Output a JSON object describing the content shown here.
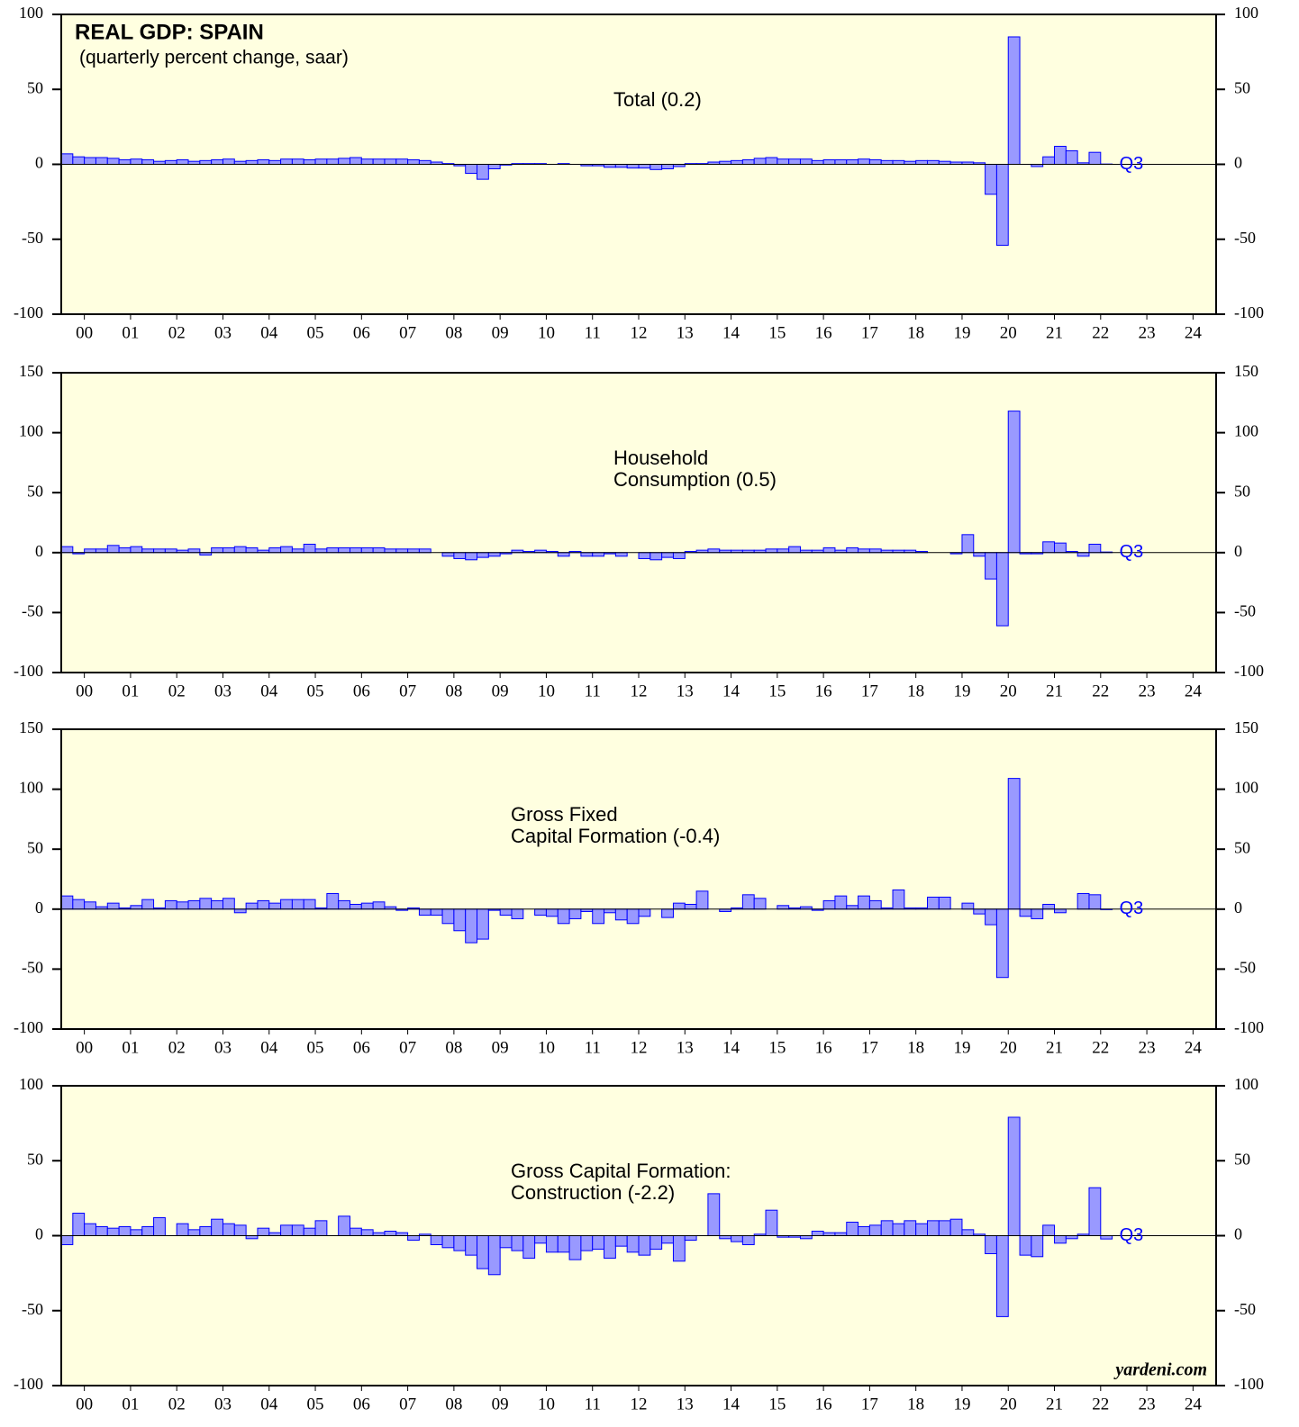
{
  "chart_data": [
    {
      "type": "bar",
      "title": "REAL GDP: SPAIN",
      "subtitle": "(quarterly percent change, saar)",
      "label": [
        "Total (0.2)"
      ],
      "end_label": "Q3",
      "color": "#9999ff",
      "x": [
        0,
        0.25,
        0.5,
        0.75,
        1,
        1.25,
        1.5,
        1.75,
        2,
        2.25,
        2.5,
        2.75,
        3,
        3.25,
        3.5,
        3.75,
        4,
        4.25,
        4.5,
        4.75,
        5,
        5.25,
        5.5,
        5.75,
        6,
        6.25,
        6.5,
        6.75,
        7,
        7.25,
        7.5,
        7.75,
        8,
        8.25,
        8.5,
        8.75,
        9,
        9.25,
        9.5,
        9.75,
        10,
        10.25,
        10.5,
        10.75,
        11,
        11.25,
        11.5,
        11.75,
        12,
        12.25,
        12.5,
        12.75,
        13,
        13.25,
        13.5,
        13.75,
        14,
        14.25,
        14.5,
        14.75,
        15,
        15.25,
        15.5,
        15.75,
        16,
        16.25,
        16.5,
        16.75,
        17,
        17.25,
        17.5,
        17.75,
        18,
        18.25,
        18.5,
        18.75,
        19,
        19.25,
        19.5,
        19.75,
        20,
        20.25,
        20.5,
        20.75,
        21,
        21.25,
        21.5,
        21.75,
        22,
        22.25,
        22.5
      ],
      "values": [
        7,
        5,
        4.5,
        4.5,
        4,
        3,
        3.5,
        3,
        2,
        2.5,
        3,
        2,
        2.5,
        3,
        3.5,
        2,
        2.5,
        3,
        2.5,
        3.5,
        3.5,
        3,
        3.5,
        3.5,
        4,
        4.5,
        3.5,
        3.5,
        3.5,
        3.5,
        3,
        2.5,
        1.5,
        0.5,
        -1,
        -6,
        -10,
        -3,
        -0.5,
        0.5,
        0.5,
        0.5,
        0,
        0.5,
        0,
        -1,
        -1,
        -2,
        -2,
        -2.5,
        -2.5,
        -3.5,
        -3,
        -1.5,
        0.5,
        0.5,
        1.5,
        2,
        2.5,
        3,
        4,
        4.5,
        3.5,
        3.5,
        3.5,
        2.5,
        3,
        3,
        3,
        3.5,
        3,
        2.5,
        2.5,
        2,
        2.5,
        2.5,
        2,
        1.5,
        1.5,
        1,
        -20,
        -54,
        85,
        0,
        -1.5,
        5,
        12,
        9,
        1,
        8,
        0.2
      ],
      "xlim": [
        0,
        25
      ],
      "xticks": [
        {
          "value": 0.5,
          "label": "00"
        },
        {
          "value": 1.5,
          "label": "01"
        },
        {
          "value": 2.5,
          "label": "02"
        },
        {
          "value": 3.5,
          "label": "03"
        },
        {
          "value": 4.5,
          "label": "04"
        },
        {
          "value": 5.5,
          "label": "05"
        },
        {
          "value": 6.5,
          "label": "06"
        },
        {
          "value": 7.5,
          "label": "07"
        },
        {
          "value": 8.5,
          "label": "08"
        },
        {
          "value": 9.5,
          "label": "09"
        },
        {
          "value": 10.5,
          "label": "10"
        },
        {
          "value": 11.5,
          "label": "11"
        },
        {
          "value": 12.5,
          "label": "12"
        },
        {
          "value": 13.5,
          "label": "13"
        },
        {
          "value": 14.5,
          "label": "14"
        },
        {
          "value": 15.5,
          "label": "15"
        },
        {
          "value": 16.5,
          "label": "16"
        },
        {
          "value": 17.5,
          "label": "17"
        },
        {
          "value": 18.5,
          "label": "18"
        },
        {
          "value": 19.5,
          "label": "19"
        },
        {
          "value": 20.5,
          "label": "20"
        },
        {
          "value": 21.5,
          "label": "21"
        },
        {
          "value": 22.5,
          "label": "22"
        },
        {
          "value": 23.5,
          "label": "23"
        },
        {
          "value": 24.5,
          "label": "24"
        }
      ],
      "ylim": [
        -100,
        100
      ],
      "yticks": [
        -100,
        -50,
        0,
        50,
        100
      ]
    },
    {
      "type": "bar",
      "label": [
        "Household",
        "Consumption (0.5)"
      ],
      "end_label": "Q3",
      "color": "#9999ff",
      "x": [
        0,
        0.25,
        0.5,
        0.75,
        1,
        1.25,
        1.5,
        1.75,
        2,
        2.25,
        2.5,
        2.75,
        3,
        3.25,
        3.5,
        3.75,
        4,
        4.25,
        4.5,
        4.75,
        5,
        5.25,
        5.5,
        5.75,
        6,
        6.25,
        6.5,
        6.75,
        7,
        7.25,
        7.5,
        7.75,
        8,
        8.25,
        8.5,
        8.75,
        9,
        9.25,
        9.5,
        9.75,
        10,
        10.25,
        10.5,
        10.75,
        11,
        11.25,
        11.5,
        11.75,
        12,
        12.25,
        12.5,
        12.75,
        13,
        13.25,
        13.5,
        13.75,
        14,
        14.25,
        14.5,
        14.75,
        15,
        15.25,
        15.5,
        15.75,
        16,
        16.25,
        16.5,
        16.75,
        17,
        17.25,
        17.5,
        17.75,
        18,
        18.25,
        18.5,
        18.75,
        19,
        19.25,
        19.5,
        19.75,
        20,
        20.25,
        20.5,
        20.75,
        21,
        21.25,
        21.5,
        21.75,
        22,
        22.25,
        22.5
      ],
      "values": [
        5,
        -1,
        3,
        3,
        6,
        4,
        5,
        3,
        3,
        3,
        2,
        3,
        -2,
        4,
        4,
        5,
        4,
        2,
        4,
        5,
        3,
        7,
        3,
        4,
        4,
        4,
        4,
        4,
        3,
        3,
        3,
        3,
        0,
        -3,
        -5,
        -6,
        -4,
        -3,
        -1,
        2,
        1,
        2,
        1,
        -3,
        1,
        -3,
        -3,
        -1,
        -3,
        0,
        -5,
        -6,
        -4,
        -5,
        1,
        2,
        3,
        2,
        2,
        2,
        2,
        3,
        3,
        5,
        2,
        2,
        4,
        2,
        4,
        3,
        3,
        2,
        2,
        2,
        1,
        0,
        0,
        -1,
        15,
        -3,
        -22,
        -61,
        118,
        -1,
        -1,
        9,
        8,
        1,
        -3,
        7,
        0.5
      ],
      "xlim": [
        0,
        25
      ],
      "xticks": [
        {
          "value": 0.5,
          "label": "00"
        },
        {
          "value": 1.5,
          "label": "01"
        },
        {
          "value": 2.5,
          "label": "02"
        },
        {
          "value": 3.5,
          "label": "03"
        },
        {
          "value": 4.5,
          "label": "04"
        },
        {
          "value": 5.5,
          "label": "05"
        },
        {
          "value": 6.5,
          "label": "06"
        },
        {
          "value": 7.5,
          "label": "07"
        },
        {
          "value": 8.5,
          "label": "08"
        },
        {
          "value": 9.5,
          "label": "09"
        },
        {
          "value": 10.5,
          "label": "10"
        },
        {
          "value": 11.5,
          "label": "11"
        },
        {
          "value": 12.5,
          "label": "12"
        },
        {
          "value": 13.5,
          "label": "13"
        },
        {
          "value": 14.5,
          "label": "14"
        },
        {
          "value": 15.5,
          "label": "15"
        },
        {
          "value": 16.5,
          "label": "16"
        },
        {
          "value": 17.5,
          "label": "17"
        },
        {
          "value": 18.5,
          "label": "18"
        },
        {
          "value": 19.5,
          "label": "19"
        },
        {
          "value": 20.5,
          "label": "20"
        },
        {
          "value": 21.5,
          "label": "21"
        },
        {
          "value": 22.5,
          "label": "22"
        },
        {
          "value": 23.5,
          "label": "23"
        },
        {
          "value": 24.5,
          "label": "24"
        }
      ],
      "ylim": [
        -100,
        150
      ],
      "yticks": [
        -100,
        -50,
        0,
        50,
        100,
        150
      ]
    },
    {
      "type": "bar",
      "label": [
        "Gross Fixed",
        "Capital Formation (-0.4)"
      ],
      "end_label": "Q3",
      "color": "#9999ff",
      "x": [
        0,
        0.25,
        0.5,
        0.75,
        1,
        1.25,
        1.5,
        1.75,
        2,
        2.25,
        2.5,
        2.75,
        3,
        3.25,
        3.5,
        3.75,
        4,
        4.25,
        4.5,
        4.75,
        5,
        5.25,
        5.5,
        5.75,
        6,
        6.25,
        6.5,
        6.75,
        7,
        7.25,
        7.5,
        7.75,
        8,
        8.25,
        8.5,
        8.75,
        9,
        9.25,
        9.5,
        9.75,
        10,
        10.25,
        10.5,
        10.75,
        11,
        11.25,
        11.5,
        11.75,
        12,
        12.25,
        12.5,
        12.75,
        13,
        13.25,
        13.5,
        13.75,
        14,
        14.25,
        14.5,
        14.75,
        15,
        15.25,
        15.5,
        15.75,
        16,
        16.25,
        16.5,
        16.75,
        17,
        17.25,
        17.5,
        17.75,
        18,
        18.25,
        18.5,
        18.75,
        19,
        19.25,
        19.5,
        19.75,
        20,
        20.25,
        20.5,
        20.75,
        21,
        21.25,
        21.5,
        21.75,
        22,
        22.25,
        22.5
      ],
      "values": [
        11,
        8,
        6,
        2,
        5,
        1,
        3,
        8,
        1,
        7,
        6,
        7,
        9,
        7,
        9,
        -3,
        5,
        7,
        5,
        8,
        8,
        8,
        1,
        13,
        7,
        4,
        5,
        6,
        2,
        -1,
        1,
        -5,
        -5,
        -12,
        -18,
        -28,
        -25,
        -1,
        -5,
        -8,
        0,
        -5,
        -6,
        -12,
        -8,
        -2,
        -12,
        -3,
        -9,
        -12,
        -6,
        0,
        -7,
        5,
        4,
        15,
        0,
        -2,
        1,
        12,
        9,
        0,
        3,
        1,
        2,
        -1,
        7,
        11,
        3,
        11,
        7,
        1,
        16,
        1,
        1,
        10,
        10,
        0,
        5,
        -4,
        -13,
        -57,
        109,
        -6,
        -8,
        4,
        -3,
        0,
        13,
        12,
        -0.4
      ],
      "xlim": [
        0,
        25
      ],
      "xticks": [
        {
          "value": 0.5,
          "label": "00"
        },
        {
          "value": 1.5,
          "label": "01"
        },
        {
          "value": 2.5,
          "label": "02"
        },
        {
          "value": 3.5,
          "label": "03"
        },
        {
          "value": 4.5,
          "label": "04"
        },
        {
          "value": 5.5,
          "label": "05"
        },
        {
          "value": 6.5,
          "label": "06"
        },
        {
          "value": 7.5,
          "label": "07"
        },
        {
          "value": 8.5,
          "label": "08"
        },
        {
          "value": 9.5,
          "label": "09"
        },
        {
          "value": 10.5,
          "label": "10"
        },
        {
          "value": 11.5,
          "label": "11"
        },
        {
          "value": 12.5,
          "label": "12"
        },
        {
          "value": 13.5,
          "label": "13"
        },
        {
          "value": 14.5,
          "label": "14"
        },
        {
          "value": 15.5,
          "label": "15"
        },
        {
          "value": 16.5,
          "label": "16"
        },
        {
          "value": 17.5,
          "label": "17"
        },
        {
          "value": 18.5,
          "label": "18"
        },
        {
          "value": 19.5,
          "label": "19"
        },
        {
          "value": 20.5,
          "label": "20"
        },
        {
          "value": 21.5,
          "label": "21"
        },
        {
          "value": 22.5,
          "label": "22"
        },
        {
          "value": 23.5,
          "label": "23"
        },
        {
          "value": 24.5,
          "label": "24"
        }
      ],
      "ylim": [
        -100,
        150
      ],
      "yticks": [
        -100,
        -50,
        0,
        50,
        100,
        150
      ]
    },
    {
      "type": "bar",
      "label": [
        "Gross Capital Formation:",
        "Construction (-2.2)"
      ],
      "end_label": "Q3",
      "source": "yardeni.com",
      "color": "#9999ff",
      "x": [
        0,
        0.25,
        0.5,
        0.75,
        1,
        1.25,
        1.5,
        1.75,
        2,
        2.25,
        2.5,
        2.75,
        3,
        3.25,
        3.5,
        3.75,
        4,
        4.25,
        4.5,
        4.75,
        5,
        5.25,
        5.5,
        5.75,
        6,
        6.25,
        6.5,
        6.75,
        7,
        7.25,
        7.5,
        7.75,
        8,
        8.25,
        8.5,
        8.75,
        9,
        9.25,
        9.5,
        9.75,
        10,
        10.25,
        10.5,
        10.75,
        11,
        11.25,
        11.5,
        11.75,
        12,
        12.25,
        12.5,
        12.75,
        13,
        13.25,
        13.5,
        13.75,
        14,
        14.25,
        14.5,
        14.75,
        15,
        15.25,
        15.5,
        15.75,
        16,
        16.25,
        16.5,
        16.75,
        17,
        17.25,
        17.5,
        17.75,
        18,
        18.25,
        18.5,
        18.75,
        19,
        19.25,
        19.5,
        19.75,
        20,
        20.25,
        20.5,
        20.75,
        21,
        21.25,
        21.5,
        21.75,
        22,
        22.25,
        22.5
      ],
      "values": [
        -6,
        15,
        8,
        6,
        5,
        6,
        4,
        6,
        12,
        0,
        8,
        4,
        6,
        11,
        8,
        7,
        -2,
        5,
        2,
        7,
        7,
        5,
        10,
        0,
        13,
        5,
        4,
        2,
        3,
        2,
        -3,
        1,
        -6,
        -8,
        -10,
        -13,
        -22,
        -26,
        -8,
        -10,
        -15,
        -5,
        -11,
        -11,
        -16,
        -10,
        -9,
        -15,
        -7,
        -11,
        -13,
        -9,
        -5,
        -17,
        -3,
        0,
        28,
        -2,
        -4,
        -6,
        1,
        17,
        -1,
        -1,
        -2,
        3,
        2,
        2,
        9,
        6,
        7,
        10,
        8,
        10,
        8,
        10,
        10,
        11,
        4,
        1,
        -12,
        -54,
        79,
        -13,
        -14,
        7,
        -5,
        -2,
        1,
        32,
        -2.2
      ],
      "xlim": [
        0,
        25
      ],
      "xticks": [
        {
          "value": 0.5,
          "label": "00"
        },
        {
          "value": 1.5,
          "label": "01"
        },
        {
          "value": 2.5,
          "label": "02"
        },
        {
          "value": 3.5,
          "label": "03"
        },
        {
          "value": 4.5,
          "label": "04"
        },
        {
          "value": 5.5,
          "label": "05"
        },
        {
          "value": 6.5,
          "label": "06"
        },
        {
          "value": 7.5,
          "label": "07"
        },
        {
          "value": 8.5,
          "label": "08"
        },
        {
          "value": 9.5,
          "label": "09"
        },
        {
          "value": 10.5,
          "label": "10"
        },
        {
          "value": 11.5,
          "label": "11"
        },
        {
          "value": 12.5,
          "label": "12"
        },
        {
          "value": 13.5,
          "label": "13"
        },
        {
          "value": 14.5,
          "label": "14"
        },
        {
          "value": 15.5,
          "label": "15"
        },
        {
          "value": 16.5,
          "label": "16"
        },
        {
          "value": 17.5,
          "label": "17"
        },
        {
          "value": 18.5,
          "label": "18"
        },
        {
          "value": 19.5,
          "label": "19"
        },
        {
          "value": 20.5,
          "label": "20"
        },
        {
          "value": 21.5,
          "label": "21"
        },
        {
          "value": 22.5,
          "label": "22"
        },
        {
          "value": 23.5,
          "label": "23"
        },
        {
          "value": 24.5,
          "label": "24"
        }
      ],
      "ylim": [
        -100,
        100
      ],
      "yticks": [
        -100,
        -50,
        0,
        50,
        100
      ]
    }
  ]
}
